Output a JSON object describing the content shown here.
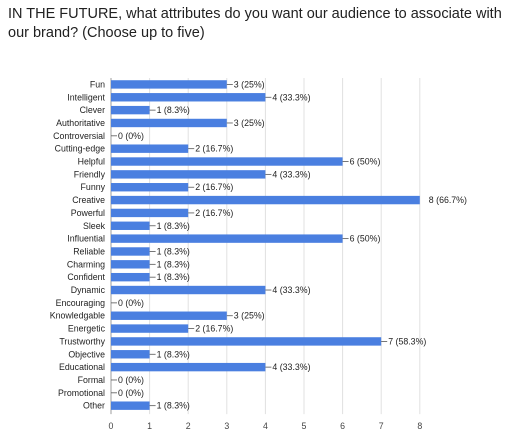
{
  "question": "IN THE FUTURE, what attributes do you want our audience to associate with our brand? (Choose up to five)",
  "chart_data": {
    "type": "bar",
    "orientation": "horizontal",
    "title": "",
    "xlabel": "",
    "ylabel": "",
    "xlim": [
      0,
      8
    ],
    "xticks": [
      0,
      1,
      2,
      3,
      4,
      5,
      6,
      7,
      8
    ],
    "grid": true,
    "legend": "none",
    "bar_color": "#4a7fe0",
    "categories": [
      "Fun",
      "Intelligent",
      "Clever",
      "Authoritative",
      "Controversial",
      "Cutting-edge",
      "Helpful",
      "Friendly",
      "Funny",
      "Creative",
      "Powerful",
      "Sleek",
      "Influential",
      "Reliable",
      "Charming",
      "Confident",
      "Dynamic",
      "Encouraging",
      "Knowledgable",
      "Energetic",
      "Trustworthy",
      "Objective",
      "Educational",
      "Formal",
      "Promotional",
      "Other"
    ],
    "values": [
      3,
      4,
      1,
      3,
      0,
      2,
      6,
      4,
      2,
      8,
      2,
      1,
      6,
      1,
      1,
      1,
      4,
      0,
      3,
      2,
      7,
      1,
      4,
      0,
      0,
      1
    ],
    "value_labels": [
      "3 (25%)",
      "4 (33.3%)",
      "1 (8.3%)",
      "3 (25%)",
      "0 (0%)",
      "2 (16.7%)",
      "6 (50%)",
      "4 (33.3%)",
      "2 (16.7%)",
      "8 (66.7%)",
      "2 (16.7%)",
      "1 (8.3%)",
      "6 (50%)",
      "1 (8.3%)",
      "1 (8.3%)",
      "1 (8.3%)",
      "4 (33.3%)",
      "0 (0%)",
      "3 (25%)",
      "2 (16.7%)",
      "7 (58.3%)",
      "1 (8.3%)",
      "4 (33.3%)",
      "0 (0%)",
      "0 (0%)",
      "1 (8.3%)"
    ]
  }
}
